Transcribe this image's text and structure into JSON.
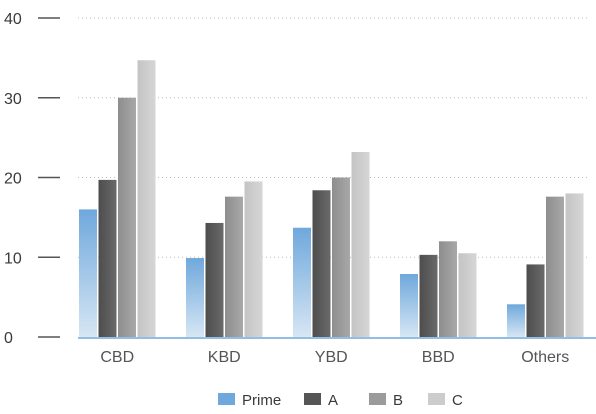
{
  "chart_data": {
    "type": "bar",
    "categories": [
      "CBD",
      "KBD",
      "YBD",
      "BBD",
      "Others"
    ],
    "series": [
      {
        "name": "Prime",
        "values": [
          16.0,
          9.9,
          13.7,
          7.9,
          4.1
        ],
        "color": "#6fa8dc"
      },
      {
        "name": "A",
        "values": [
          19.7,
          14.3,
          18.4,
          10.3,
          9.1
        ],
        "color": "#555555"
      },
      {
        "name": "B",
        "values": [
          30.0,
          17.6,
          20.0,
          12.0,
          17.6
        ],
        "color": "#9b9b9b"
      },
      {
        "name": "C",
        "values": [
          34.7,
          19.5,
          23.2,
          10.5,
          18.0
        ],
        "color": "#cccccc"
      }
    ],
    "yticks": [
      0,
      10,
      20,
      30,
      40
    ],
    "ylim": [
      0,
      40
    ],
    "grid": true,
    "legend_position": "bottom"
  }
}
